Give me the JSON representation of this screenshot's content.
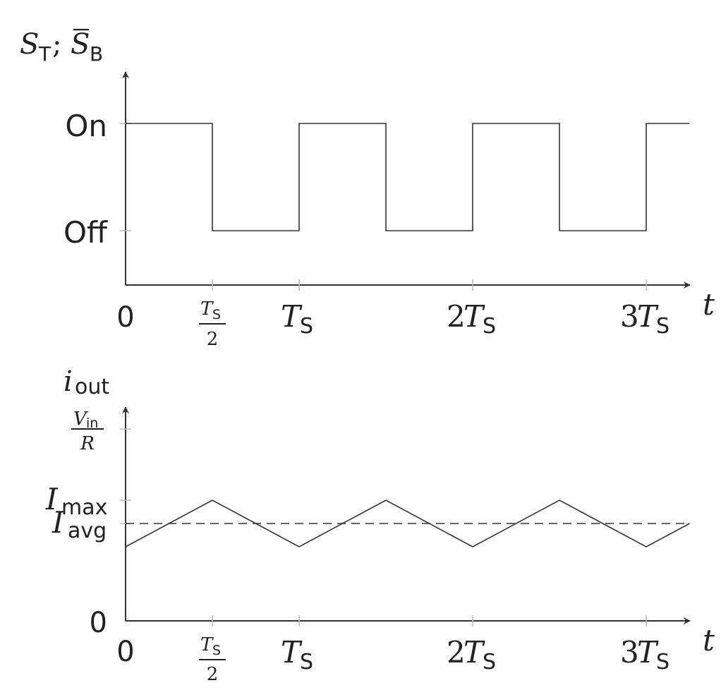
{
  "switch_plot": {
    "y_label": {
      "s_top": "S",
      "sub_top": "T",
      "separator": "; ",
      "s_bottom": "S",
      "sub_bottom": "B"
    },
    "levels": {
      "on": "On",
      "off": "Off"
    },
    "x_label": "t",
    "x_ticks": {
      "zero": "0",
      "half_num": "T",
      "half_num_sub": "S",
      "half_den": "2",
      "ts": "T",
      "ts_sub": "S",
      "two_ts_coef": "2",
      "two_ts": "T",
      "two_ts_sub": "S",
      "three_ts_coef": "3",
      "three_ts": "T",
      "three_ts_sub": "S"
    }
  },
  "current_plot": {
    "y_label": {
      "main": "i",
      "sub": "out"
    },
    "y_ticks": {
      "vin_num": "V",
      "vin_num_sub": "in",
      "vin_den": "R",
      "imax": "I",
      "imax_sub": "max",
      "iavg": "I",
      "iavg_sub": "avg",
      "zero": "0"
    },
    "x_label": "t",
    "x_ticks": {
      "zero": "0",
      "half_num": "T",
      "half_num_sub": "S",
      "half_den": "2",
      "ts": "T",
      "ts_sub": "S",
      "two_ts_coef": "2",
      "two_ts": "T",
      "two_ts_sub": "S",
      "three_ts_coef": "3",
      "three_ts": "T",
      "three_ts_sub": "S"
    }
  },
  "chart_data": [
    {
      "type": "line",
      "name_role": "switching state",
      "x_unit": "Ts",
      "levels": [
        "Off",
        "On"
      ],
      "x": [
        0,
        0.5,
        0.5,
        1,
        1,
        1.5,
        1.5,
        2,
        2,
        2.5,
        2.5,
        3,
        3,
        3.25
      ],
      "y": [
        1,
        1,
        0,
        0,
        1,
        1,
        0,
        0,
        1,
        1,
        0,
        0,
        1,
        1
      ]
    },
    {
      "type": "line",
      "name_role": "output current",
      "x_unit": "Ts",
      "x": [
        0,
        0.5,
        1,
        1.5,
        2,
        2.5,
        3,
        3.25
      ],
      "y_levels": [
        "0",
        "Iavg",
        "Imax",
        "Vin/R"
      ],
      "y": [
        "Imin",
        "Imax",
        "Imin",
        "Imax",
        "Imin",
        "Imax",
        "Imin",
        "Iavg"
      ],
      "dashed_reference": "Iavg"
    }
  ]
}
